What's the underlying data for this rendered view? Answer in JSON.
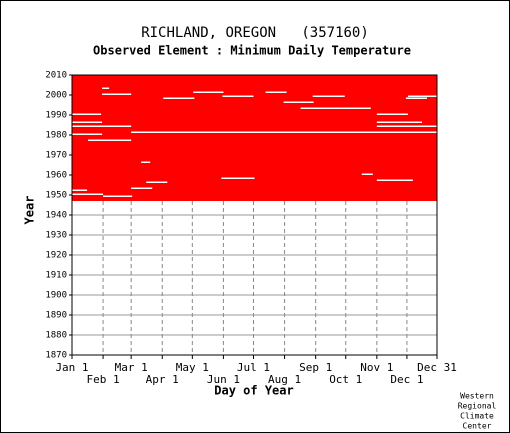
{
  "chart_data": {
    "type": "availability",
    "title": "RICHLAND, OREGON   (357160)",
    "subtitle": "Observed Element : Minimum Daily Temperature",
    "x_label": "Day of Year",
    "y_label": "Year",
    "credit": [
      "Western",
      "Regional",
      "Climate",
      "Center"
    ],
    "color": "#ff0000",
    "grid": true,
    "xlim": [
      1,
      365
    ],
    "ylim": [
      1870,
      2010
    ],
    "xticks": [
      {
        "value": 1,
        "label": "Jan 1"
      },
      {
        "value": 32,
        "label": "Feb 1"
      },
      {
        "value": 60,
        "label": "Mar 1"
      },
      {
        "value": 91,
        "label": "Apr 1"
      },
      {
        "value": 121,
        "label": "May 1"
      },
      {
        "value": 152,
        "label": "Jun 1"
      },
      {
        "value": 182,
        "label": "Jul 1"
      },
      {
        "value": 213,
        "label": "Aug 1"
      },
      {
        "value": 244,
        "label": "Sep 1"
      },
      {
        "value": 274,
        "label": "Oct 1"
      },
      {
        "value": 305,
        "label": "Nov 1"
      },
      {
        "value": 335,
        "label": "Dec 1"
      },
      {
        "value": 365,
        "label": "Dec 31"
      }
    ],
    "yticks": [
      1870,
      1880,
      1890,
      1900,
      1910,
      1920,
      1930,
      1940,
      1950,
      1960,
      1970,
      1980,
      1990,
      2000,
      2010
    ],
    "coverage": {
      "start_year": 1947,
      "end_year": 2010
    },
    "gaps": [
      {
        "year": 2003,
        "start": 31,
        "end": 37
      },
      {
        "year": 2001,
        "start": 122,
        "end": 151
      },
      {
        "year": 2001,
        "start": 194,
        "end": 214
      },
      {
        "year": 2000,
        "start": 31,
        "end": 59
      },
      {
        "year": 1999,
        "start": 151,
        "end": 181
      },
      {
        "year": 1999,
        "start": 241,
        "end": 272
      },
      {
        "year": 1999,
        "start": 336,
        "end": 365
      },
      {
        "year": 1998,
        "start": 92,
        "end": 122
      },
      {
        "year": 1998,
        "start": 334,
        "end": 354
      },
      {
        "year": 1996,
        "start": 212,
        "end": 241
      },
      {
        "year": 1993,
        "start": 229,
        "end": 298
      },
      {
        "year": 1990,
        "start": 1,
        "end": 29
      },
      {
        "year": 1990,
        "start": 305,
        "end": 335
      },
      {
        "year": 1986,
        "start": 1,
        "end": 30
      },
      {
        "year": 1986,
        "start": 305,
        "end": 349
      },
      {
        "year": 1984,
        "start": 1,
        "end": 59
      },
      {
        "year": 1984,
        "start": 305,
        "end": 365
      },
      {
        "year": 1981,
        "start": 60,
        "end": 365
      },
      {
        "year": 1980,
        "start": 1,
        "end": 30
      },
      {
        "year": 1977,
        "start": 17,
        "end": 59
      },
      {
        "year": 1966,
        "start": 70,
        "end": 78
      },
      {
        "year": 1960,
        "start": 290,
        "end": 300
      },
      {
        "year": 1958,
        "start": 150,
        "end": 182
      },
      {
        "year": 1957,
        "start": 305,
        "end": 340
      },
      {
        "year": 1956,
        "start": 75,
        "end": 95
      },
      {
        "year": 1953,
        "start": 60,
        "end": 80
      },
      {
        "year": 1952,
        "start": 1,
        "end": 15
      },
      {
        "year": 1950,
        "start": 1,
        "end": 31
      },
      {
        "year": 1949,
        "start": 32,
        "end": 60
      }
    ]
  }
}
